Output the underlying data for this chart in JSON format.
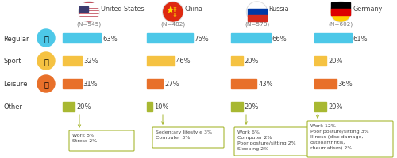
{
  "countries": [
    "United States",
    "China",
    "Russia",
    "Germany"
  ],
  "n_labels": [
    "(N=545)",
    "(N=482)",
    "(N=578)",
    "(N=602)"
  ],
  "categories": [
    "Regular",
    "Sport",
    "Leisure",
    "Other"
  ],
  "values": [
    [
      63,
      32,
      31,
      20
    ],
    [
      76,
      46,
      27,
      10
    ],
    [
      66,
      20,
      43,
      20
    ],
    [
      61,
      20,
      36,
      20
    ]
  ],
  "bar_colors": [
    "#4DC8E8",
    "#F5C242",
    "#E8702A",
    "#A8B832"
  ],
  "icon_colors": [
    "#4DC8E8",
    "#F5C242",
    "#E8702A"
  ],
  "tooltip_texts": [
    "Work 8%\nStress 2%",
    "Sedentary lifestyle 3%\nComputer 3%",
    "Work 6%\nComputer 2%\nPoor posture/sitting 2%\nSleeping 2%",
    "Work 12%\nPoor posture/sitting 3%\nIllness (disc damage,\nosteoarthritis,\nrheumatism) 2%"
  ],
  "background_color": "#ffffff",
  "text_color": "#444444",
  "cat_label_color": "#333333",
  "tooltip_border_color": "#A8B832",
  "tooltip_bg_color": "#ffffff",
  "flag_circle_colors": [
    "#CCCCCC",
    "#CCCCCC",
    "#CCCCCC",
    "#CCCCCC"
  ],
  "flag_inner_colors": [
    [
      "#B22234",
      "#FFFFFF",
      "#3C3B6E"
    ],
    [
      "#DE2910",
      "#FFDE00"
    ],
    [
      "#FFFFFF",
      "#0039A6",
      "#D52B1E"
    ],
    [
      "#000000",
      "#DD0000",
      "#FFCE00"
    ]
  ]
}
